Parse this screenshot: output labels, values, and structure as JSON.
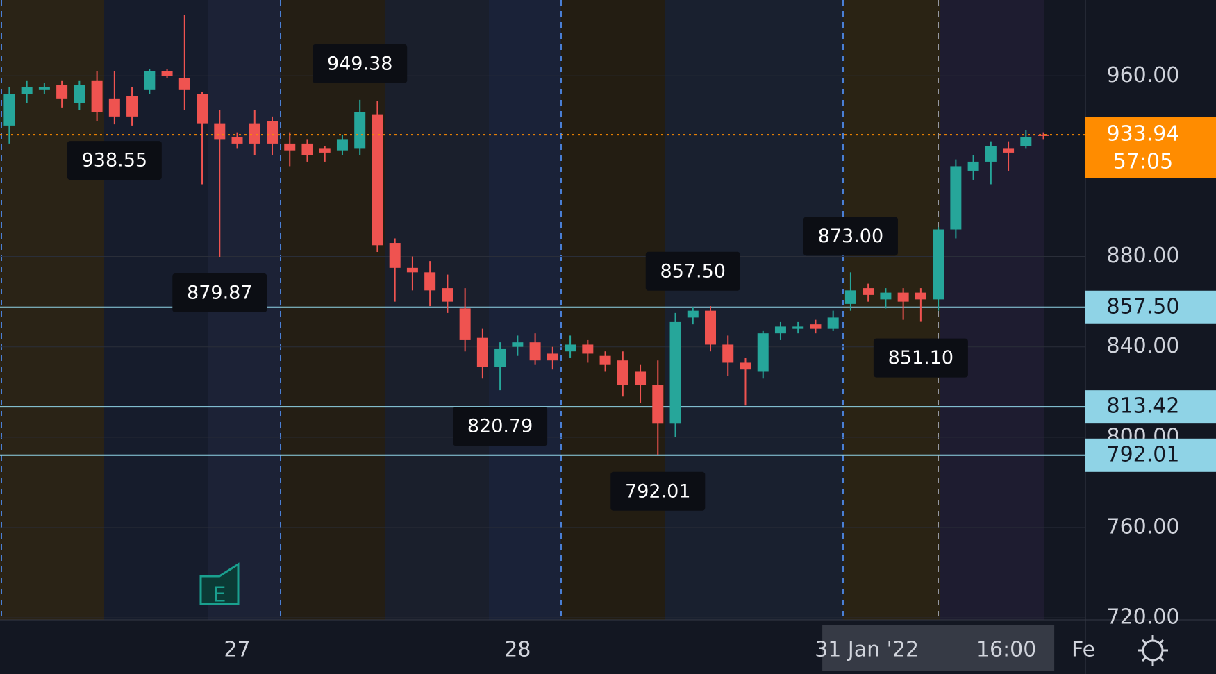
{
  "chart_data": {
    "type": "candlestick",
    "categories": [
      null,
      null,
      null,
      null,
      null,
      null,
      null,
      null,
      null,
      null,
      null,
      null,
      null,
      "27",
      null,
      null,
      null,
      null,
      null,
      null,
      null,
      null,
      null,
      null,
      null,
      null,
      null,
      null,
      null,
      "28",
      null,
      null,
      null,
      null,
      null,
      null,
      null,
      null,
      null,
      null,
      null,
      null,
      null,
      null,
      null,
      null,
      null,
      null,
      null,
      null,
      null,
      null,
      null,
      "31 Jan '22",
      null,
      null,
      null,
      null,
      null,
      null
    ],
    "crosshair_time": "16:00",
    "clipped_x_label": "Fe",
    "open": [
      938,
      952,
      954,
      956,
      948,
      958,
      950,
      951,
      954,
      962,
      959,
      952,
      939,
      933,
      939,
      940,
      930,
      930,
      928,
      927,
      928,
      943,
      886,
      875,
      873,
      866,
      857,
      844,
      831,
      840,
      842,
      837,
      838,
      841,
      836,
      834,
      829,
      823,
      806,
      853,
      856,
      841,
      833,
      829,
      846,
      848,
      850,
      848,
      859,
      866,
      861,
      864,
      864,
      861,
      892,
      918,
      922,
      928,
      929,
      934
    ],
    "high": [
      955,
      958,
      957,
      958,
      958,
      962,
      962,
      955,
      963,
      963,
      987,
      953,
      945,
      935,
      945,
      942,
      935,
      932,
      929,
      934,
      949.38,
      949,
      888,
      880,
      878,
      872,
      866,
      848,
      842,
      845,
      846,
      840,
      845,
      843,
      838,
      838,
      832,
      834,
      855,
      857.5,
      858,
      845,
      835,
      847,
      851,
      851,
      852,
      856,
      873,
      868,
      866,
      866,
      866,
      893,
      923,
      925,
      931,
      931,
      936,
      935
    ],
    "low": [
      930,
      948,
      952,
      946,
      945,
      940,
      938.55,
      938,
      952,
      959,
      945,
      912,
      879.87,
      928,
      925,
      925,
      920,
      922,
      922,
      925,
      925,
      882,
      860,
      865,
      858,
      855,
      838,
      826,
      820.79,
      836,
      832,
      830,
      835,
      833,
      829,
      818,
      815,
      792.01,
      800,
      850,
      838,
      827,
      814,
      826,
      843,
      846,
      846,
      847,
      856,
      860,
      857,
      852,
      851.1,
      856,
      888,
      914,
      912,
      918,
      928,
      932
    ],
    "close": [
      952,
      955,
      955,
      950,
      956,
      944,
      942,
      942,
      962,
      960,
      954,
      939,
      932,
      930,
      930,
      930,
      927,
      925,
      926,
      932,
      944,
      885,
      875,
      873,
      865,
      860,
      843,
      831,
      839,
      842,
      834,
      834,
      841,
      837,
      832,
      823,
      823,
      806,
      851,
      856,
      841,
      833,
      830,
      846,
      849,
      849,
      848,
      853,
      865,
      863,
      864,
      860,
      861,
      892,
      920,
      922,
      929,
      926,
      933,
      933.94
    ],
    "up_color": "#26a69a",
    "down_color": "#ef5350",
    "ylim": [
      719.1,
      993.6
    ],
    "yticks": [
      {
        "value": 720,
        "label": "720.00"
      },
      {
        "value": 760,
        "label": "760.00"
      },
      {
        "value": 800,
        "label": "800.00"
      },
      {
        "value": 840,
        "label": "840.00"
      },
      {
        "value": 880,
        "label": "880.00"
      },
      {
        "value": 960,
        "label": "960.00"
      }
    ],
    "annotations": [
      {
        "value": 949.38,
        "label": "949.38"
      },
      {
        "value": 938.55,
        "label": "938.55"
      },
      {
        "value": 879.87,
        "label": "879.87"
      },
      {
        "value": 820.79,
        "label": "820.79"
      },
      {
        "value": 857.5,
        "label": "857.50"
      },
      {
        "value": 873,
        "label": "873.00"
      },
      {
        "value": 851.1,
        "label": "851.10"
      },
      {
        "value": 792.01,
        "label": "792.01"
      }
    ],
    "price_lines": {
      "values": [
        857.5,
        813.42,
        792.01
      ],
      "value_labels": [
        "857.50",
        "813.42",
        "792.01"
      ],
      "color": "#8fd3e6"
    },
    "last_price": {
      "value": 933.94,
      "label": "933.94",
      "countdown": "57:05",
      "color": "#ff8c00"
    }
  }
}
